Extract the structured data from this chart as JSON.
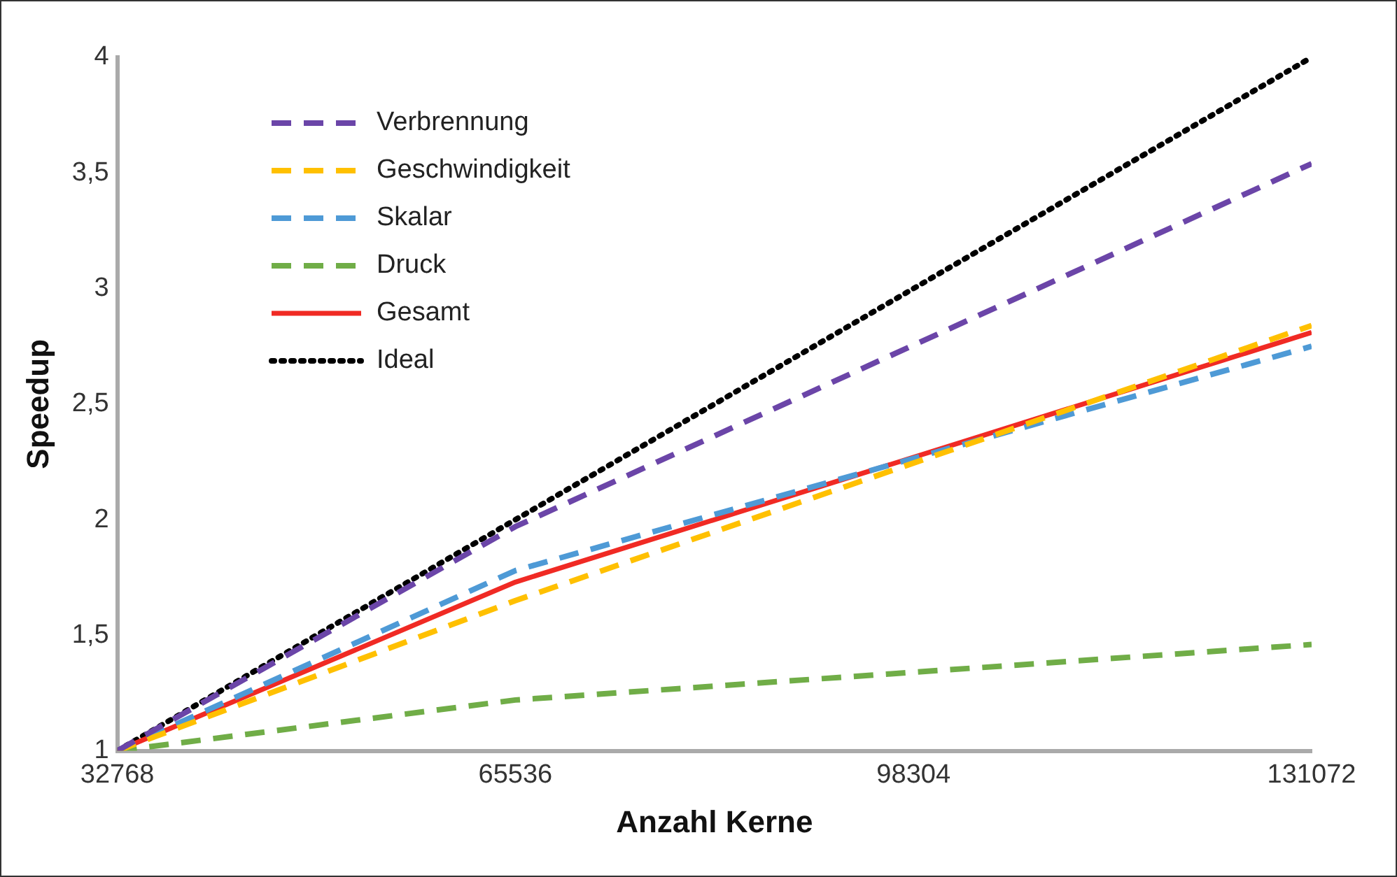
{
  "chart_data": {
    "type": "line",
    "xlabel": "Anzahl Kerne",
    "ylabel": "Speedup",
    "x": [
      32768,
      65536,
      131072
    ],
    "xlim": [
      32768,
      131072
    ],
    "xticks": [
      32768,
      65536,
      98304,
      131072
    ],
    "ylim": [
      1,
      4
    ],
    "yticks": [
      1,
      {
        "value": 1.5,
        "label": "1,5"
      },
      2,
      {
        "value": 2.5,
        "label": "2,5"
      },
      3,
      {
        "value": 3.5,
        "label": "3,5"
      },
      4
    ],
    "grid": false,
    "legend": "top left",
    "marker": "none",
    "series": [
      {
        "name": "Verbrennung",
        "color": "#6b45a8",
        "values": [
          1,
          1.97,
          3.54
        ],
        "line_style": "dashed"
      },
      {
        "name": "Geschwindigkeit",
        "color": "#ffc000",
        "values": [
          1,
          1.65,
          2.84
        ],
        "line_style": "dashed"
      },
      {
        "name": "Skalar",
        "color": "#4e9ad6",
        "values": [
          1,
          1.78,
          2.75
        ],
        "line_style": "dashed"
      },
      {
        "name": "Druck",
        "color": "#70ad47",
        "values": [
          1,
          1.22,
          1.46
        ],
        "line_style": "dashed"
      },
      {
        "name": "Gesamt",
        "color": "#f02a24",
        "values": [
          1,
          1.73,
          2.81
        ],
        "line_style": "solid"
      },
      {
        "name": "Ideal",
        "color": "#000000",
        "values": [
          1,
          2,
          4
        ],
        "line_style": "dotted"
      }
    ]
  }
}
